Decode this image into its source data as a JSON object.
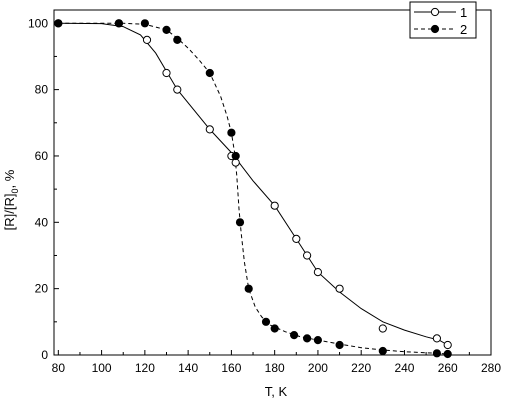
{
  "chart_data": {
    "type": "line",
    "title": "",
    "xlabel": "T, K",
    "ylabel_parts": [
      "[R]/[R]",
      "0",
      ", %"
    ],
    "xlim": [
      78,
      280
    ],
    "ylim": [
      0,
      104
    ],
    "xticks": [
      80,
      100,
      120,
      140,
      160,
      180,
      200,
      220,
      240,
      260,
      280
    ],
    "yticks": [
      0,
      20,
      40,
      60,
      80,
      100
    ],
    "grid": false,
    "legend_position": "top-right",
    "series": [
      {
        "name": "1",
        "marker": "open-circle",
        "line_style": "solid",
        "points": [
          [
            80,
            100
          ],
          [
            108,
            100
          ],
          [
            121,
            95
          ],
          [
            130,
            85
          ],
          [
            135,
            80
          ],
          [
            150,
            68
          ],
          [
            160,
            60
          ],
          [
            162,
            58
          ],
          [
            180,
            45
          ],
          [
            190,
            35
          ],
          [
            195,
            30
          ],
          [
            200,
            25
          ],
          [
            210,
            20
          ],
          [
            230,
            8
          ],
          [
            255,
            5
          ],
          [
            260,
            3
          ]
        ],
        "curve": [
          [
            80,
            100
          ],
          [
            100,
            99.9
          ],
          [
            110,
            99
          ],
          [
            118,
            96.5
          ],
          [
            125,
            91
          ],
          [
            135,
            80
          ],
          [
            150,
            68
          ],
          [
            160,
            61
          ],
          [
            170,
            52.5
          ],
          [
            180,
            45
          ],
          [
            190,
            35
          ],
          [
            200,
            25
          ],
          [
            210,
            19
          ],
          [
            220,
            14
          ],
          [
            230,
            10
          ],
          [
            240,
            7.5
          ],
          [
            250,
            5.5
          ],
          [
            256,
            4.5
          ],
          [
            260,
            3
          ]
        ]
      },
      {
        "name": "2",
        "marker": "filled-circle",
        "line_style": "dashed",
        "points": [
          [
            80,
            100
          ],
          [
            108,
            100
          ],
          [
            120,
            100
          ],
          [
            130,
            98
          ],
          [
            135,
            95
          ],
          [
            150,
            85
          ],
          [
            160,
            67
          ],
          [
            162,
            60
          ],
          [
            164,
            40
          ],
          [
            168,
            20
          ],
          [
            176,
            10
          ],
          [
            180,
            8
          ],
          [
            189,
            6
          ],
          [
            195,
            5
          ],
          [
            200,
            4.5
          ],
          [
            210,
            3
          ],
          [
            230,
            1.2
          ],
          [
            255,
            0.5
          ],
          [
            260,
            0.3
          ]
        ],
        "curve": [
          [
            80,
            100
          ],
          [
            110,
            100
          ],
          [
            120,
            99.7
          ],
          [
            130,
            98
          ],
          [
            135,
            95.5
          ],
          [
            140,
            92.5
          ],
          [
            145,
            89
          ],
          [
            150,
            85
          ],
          [
            155,
            78
          ],
          [
            158,
            72
          ],
          [
            160,
            67
          ],
          [
            161.5,
            61
          ],
          [
            162.5,
            54
          ],
          [
            163.5,
            44
          ],
          [
            164.5,
            37
          ],
          [
            166,
            28
          ],
          [
            168,
            20
          ],
          [
            171,
            14.5
          ],
          [
            174,
            11.5
          ],
          [
            178,
            9
          ],
          [
            185,
            7
          ],
          [
            192,
            5.5
          ],
          [
            200,
            4.5
          ],
          [
            210,
            3.3
          ],
          [
            220,
            2.2
          ],
          [
            230,
            1.5
          ],
          [
            240,
            1
          ],
          [
            255,
            0.5
          ],
          [
            260,
            0.3
          ]
        ]
      }
    ]
  }
}
